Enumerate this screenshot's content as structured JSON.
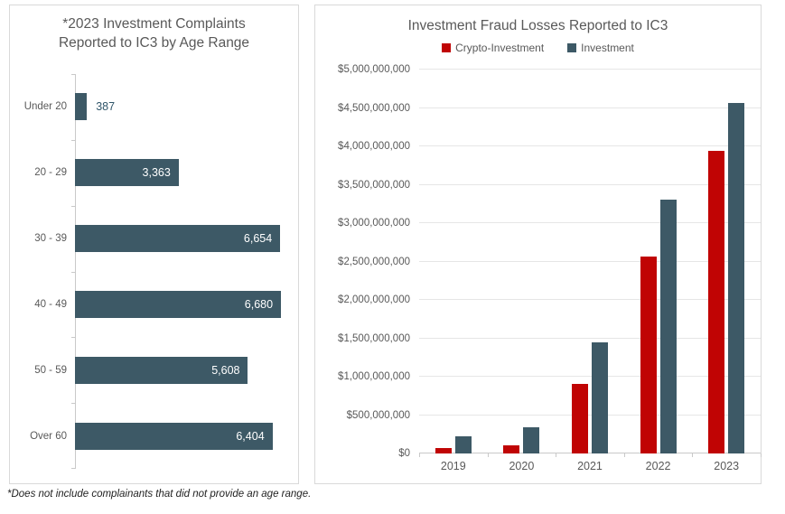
{
  "footnote": "*Does not include complainants that did not provide an age range.",
  "colors": {
    "investment_slate": "#3D5966",
    "crypto_red": "#C00404",
    "gridline": "#E6E6E6",
    "axis_line": "#C9C9C9",
    "text_gray": "#595959",
    "outside_value_label": "#31566A"
  },
  "chart_data": [
    {
      "type": "bar",
      "orientation": "horizontal",
      "title": "*2023 Investment Complaints Reported to IC3 by Age Range",
      "title_lines": [
        "*2023 Investment Complaints",
        "Reported to IC3 by Age Range"
      ],
      "categories": [
        "Under 20",
        "20 - 29",
        "30 - 39",
        "40 - 49",
        "50 - 59",
        "Over 60"
      ],
      "values": [
        387,
        3363,
        6654,
        6680,
        5608,
        6404
      ],
      "value_labels": [
        "387",
        "3,363",
        "6,654",
        "6,680",
        "5,608",
        "6,404"
      ],
      "xlim": [
        0,
        7000
      ],
      "grid": false,
      "bar_color": "#3D5966",
      "legend_position": "none"
    },
    {
      "type": "bar",
      "orientation": "vertical",
      "grouped": true,
      "title": "Investment Fraud Losses Reported to IC3",
      "categories": [
        "2019",
        "2020",
        "2021",
        "2022",
        "2023"
      ],
      "series": [
        {
          "name": "Crypto-Investment",
          "color": "#C00404",
          "values": [
            70000000,
            110000000,
            907000000,
            2570000000,
            3940000000
          ]
        },
        {
          "name": "Investment",
          "color": "#3D5966",
          "values": [
            222000000,
            336000000,
            1450000000,
            3310000000,
            4570000000
          ]
        }
      ],
      "ylim": [
        0,
        5000000000
      ],
      "ytick_step": 500000000,
      "ytick_labels": [
        "$0",
        "$500,000,000",
        "$1,000,000,000",
        "$1,500,000,000",
        "$2,000,000,000",
        "$2,500,000,000",
        "$3,000,000,000",
        "$3,500,000,000",
        "$4,000,000,000",
        "$4,500,000,000",
        "$5,000,000,000"
      ],
      "legend_position": "top",
      "grid": true
    }
  ]
}
